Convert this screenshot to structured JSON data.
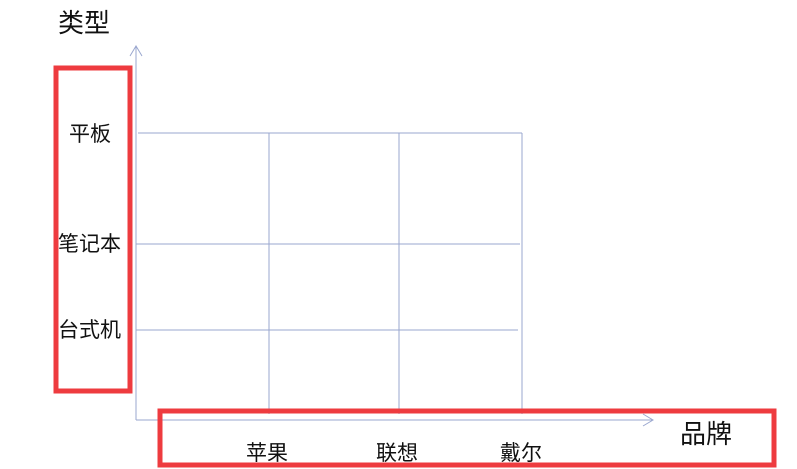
{
  "axis_titles": {
    "y": "类型",
    "x": "品牌"
  },
  "y_categories": [
    "平板",
    "笔记本",
    "台式机"
  ],
  "x_categories": [
    "苹果",
    "联想",
    "戴尔"
  ],
  "colors": {
    "axis": "#9aa7cf",
    "highlight_box": "#ee3b3f",
    "text": "#111111"
  }
}
